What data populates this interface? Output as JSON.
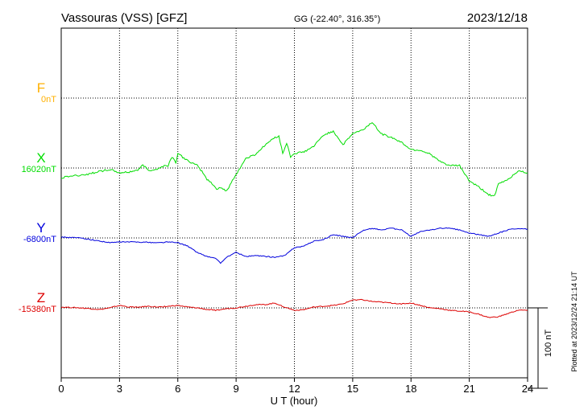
{
  "header": {
    "station": "Vassouras (VSS)  [GFZ]",
    "coords": "GG (-22.40°, 316.35°)",
    "date": "2023/12/18"
  },
  "footer": {
    "xlabel": "U T (hour)",
    "plotted": "Plotted at 2023/12/24 21:14 UT"
  },
  "scale_bar": {
    "label": "100 nT",
    "value_nT": 100
  },
  "colors": {
    "F": "#ffb000",
    "X": "#00dd00",
    "Y": "#0000dd",
    "Z": "#dd0000",
    "grid": "#000000"
  },
  "chart_data": {
    "type": "line",
    "x_unit": "hour UT",
    "xlim": [
      0,
      24
    ],
    "x_ticks": [
      "0",
      "3",
      "6",
      "9",
      "12",
      "15",
      "18",
      "21",
      "24"
    ],
    "nT_per_row": 87,
    "series": [
      {
        "key": "F",
        "name": "F",
        "baseline": "0nT",
        "row": 1,
        "x": [],
        "values": []
      },
      {
        "key": "X",
        "name": "X",
        "baseline": "16020nT",
        "row": 2,
        "x": [
          0,
          0.5,
          1.0,
          1.5,
          2.0,
          2.5,
          3.0,
          3.5,
          4.0,
          4.2,
          4.5,
          5.0,
          5.3,
          5.5,
          5.7,
          5.9,
          6.0,
          6.5,
          7.0,
          7.3,
          7.5,
          7.7,
          8.0,
          8.2,
          8.5,
          9.0,
          9.5,
          10.0,
          10.5,
          11.0,
          11.2,
          11.4,
          11.6,
          11.8,
          12.0,
          12.5,
          13.0,
          13.5,
          14.0,
          14.5,
          15.0,
          15.5,
          16.0,
          16.5,
          17.0,
          17.5,
          18.0,
          18.5,
          19.0,
          19.5,
          20.0,
          20.5,
          21.0,
          21.5,
          22.0,
          22.3,
          22.5,
          23.0,
          23.5,
          24.0
        ],
        "values": [
          -12,
          -10,
          -9,
          -7,
          -4,
          -2,
          -6,
          -5,
          -2,
          4,
          -3,
          -1,
          3,
          3,
          14,
          7,
          18,
          9,
          3,
          -6,
          -14,
          -18,
          -26,
          -24,
          -29,
          -8,
          12,
          17,
          29,
          38,
          40,
          18,
          31,
          14,
          18,
          20,
          27,
          41,
          46,
          29,
          43,
          47,
          57,
          42,
          38,
          32,
          23,
          22,
          17,
          8,
          3,
          3,
          -16,
          -24,
          -33,
          -35,
          -20,
          -14,
          -4,
          -6
        ]
      },
      {
        "key": "Y",
        "name": "Y",
        "baseline": "-6800nT",
        "row": 3,
        "x": [
          0,
          1,
          2,
          2.5,
          3,
          4,
          5,
          5.5,
          6,
          6.5,
          7,
          7.5,
          8,
          8.2,
          8.5,
          9,
          9.5,
          10,
          11,
          11.5,
          12,
          12.5,
          13,
          13.5,
          14,
          14.5,
          15,
          15.5,
          16,
          16.5,
          17,
          17.5,
          18,
          18.5,
          19,
          19.5,
          20,
          20.5,
          21,
          21.5,
          22,
          22.5,
          23,
          23.5,
          24
        ],
        "values": [
          1,
          0,
          -4,
          -6,
          -5,
          -5,
          -6,
          -5,
          -6,
          -10,
          -18,
          -23,
          -26,
          -32,
          -24,
          -18,
          -23,
          -22,
          -24,
          -22,
          -12,
          -10,
          -4,
          -2,
          4,
          2,
          0,
          9,
          12,
          10,
          12,
          10,
          2,
          8,
          10,
          12,
          12,
          10,
          6,
          4,
          2,
          6,
          10,
          12,
          11
        ]
      },
      {
        "key": "Z",
        "name": "Z",
        "baseline": "-15380nT",
        "row": 4,
        "x": [
          0,
          1,
          2,
          2.5,
          3,
          3.5,
          4,
          4.5,
          5,
          5.5,
          6,
          6.5,
          7,
          7.5,
          8,
          8.5,
          9,
          9.5,
          10,
          10.5,
          11,
          11.5,
          12,
          12.5,
          13,
          13.5,
          14,
          14.5,
          15,
          15.5,
          16,
          16.5,
          17,
          17.5,
          18,
          18.5,
          19,
          19.5,
          20,
          20.5,
          21,
          21.5,
          22,
          22.5,
          23,
          23.5,
          24
        ],
        "values": [
          1,
          0,
          -2,
          0,
          3,
          1,
          1,
          2,
          1,
          2,
          3,
          1,
          0,
          -2,
          -3,
          -1,
          0,
          2,
          4,
          4,
          6,
          1,
          -3,
          -2,
          1,
          2,
          3,
          5,
          10,
          10,
          8,
          7,
          6,
          5,
          6,
          3,
          0,
          -1,
          -3,
          -4,
          -5,
          -8,
          -12,
          -11,
          -7,
          -3,
          -3
        ]
      }
    ]
  }
}
